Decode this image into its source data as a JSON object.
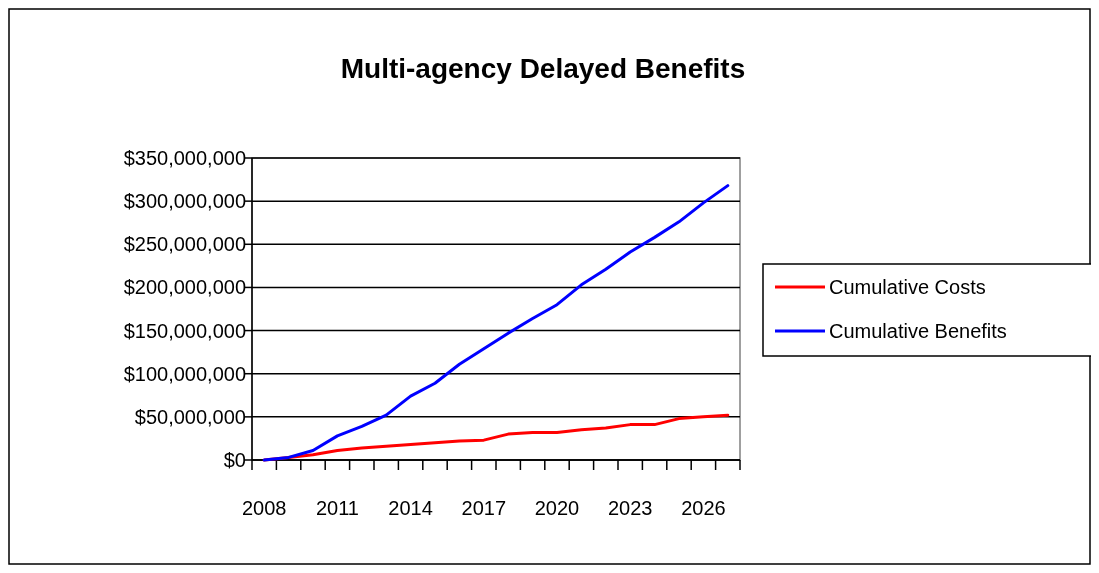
{
  "chart_data": {
    "type": "line",
    "title": "Multi-agency Delayed Benefits",
    "categories": [
      "2008",
      null,
      null,
      "2011",
      null,
      null,
      "2014",
      null,
      null,
      "2017",
      null,
      null,
      "2020",
      null,
      null,
      "2023",
      null,
      null,
      "2026",
      null
    ],
    "series": [
      {
        "name": "Cumulative Costs",
        "color": "#ff0000",
        "values": [
          0,
          3000000,
          6000000,
          11000000,
          14000000,
          16000000,
          18000000,
          20000000,
          22000000,
          23000000,
          30000000,
          32000000,
          32000000,
          35000000,
          37000000,
          41000000,
          41000000,
          48000000,
          50000000,
          52000000
        ]
      },
      {
        "name": "Cumulative Benefits",
        "color": "#0000ff",
        "values": [
          0,
          3000000,
          11000000,
          28000000,
          39000000,
          52000000,
          74000000,
          89000000,
          111000000,
          129000000,
          147000000,
          164000000,
          180000000,
          203000000,
          221000000,
          241000000,
          258000000,
          276000000,
          298000000,
          318000000
        ]
      }
    ],
    "ylim": [
      0,
      350000000
    ],
    "yticks": [
      {
        "value": 0,
        "label": "$0"
      },
      {
        "value": 50000000,
        "label": "$50,000,000"
      },
      {
        "value": 100000000,
        "label": "$100,000,000"
      },
      {
        "value": 150000000,
        "label": "$150,000,000"
      },
      {
        "value": 200000000,
        "label": "$200,000,000"
      },
      {
        "value": 250000000,
        "label": "$250,000,000"
      },
      {
        "value": 300000000,
        "label": "$300,000,000"
      },
      {
        "value": 350000000,
        "label": "$350,000,000"
      }
    ],
    "grid": "y",
    "legend": "right",
    "marker": "none",
    "line_style": "solid"
  }
}
